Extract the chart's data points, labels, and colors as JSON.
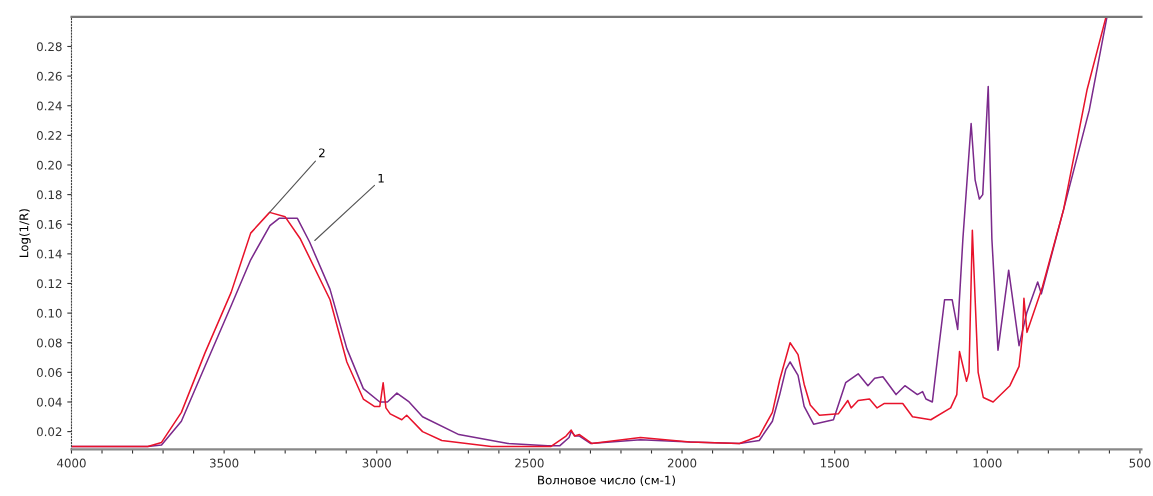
{
  "chart_data": {
    "type": "line",
    "xlabel": "Волновое число (см-1)",
    "ylabel": "Log(1/R)",
    "xlim": [
      4000,
      495
    ],
    "ylim": [
      0.008,
      0.3
    ],
    "xticks": [
      4000,
      {
        "value": 3900,
        "label": null
      },
      {
        "value": 3800,
        "label": null
      },
      {
        "value": 3700,
        "label": null
      },
      {
        "value": 3600,
        "label": null
      },
      3500,
      {
        "value": 3400,
        "label": null
      },
      {
        "value": 3300,
        "label": null
      },
      {
        "value": 3200,
        "label": null
      },
      {
        "value": 3100,
        "label": null
      },
      3000,
      {
        "value": 2900,
        "label": null
      },
      {
        "value": 2800,
        "label": null
      },
      {
        "value": 2700,
        "label": null
      },
      {
        "value": 2600,
        "label": null
      },
      2500,
      {
        "value": 2400,
        "label": null
      },
      {
        "value": 2300,
        "label": null
      },
      {
        "value": 2200,
        "label": null
      },
      {
        "value": 2100,
        "label": null
      },
      2000,
      {
        "value": 1900,
        "label": null
      },
      {
        "value": 1800,
        "label": null
      },
      {
        "value": 1700,
        "label": null
      },
      {
        "value": 1600,
        "label": null
      },
      1500,
      {
        "value": 1400,
        "label": null
      },
      {
        "value": 1300,
        "label": null
      },
      {
        "value": 1200,
        "label": null
      },
      {
        "value": 1100,
        "label": null
      },
      1000,
      {
        "value": 900,
        "label": null
      },
      {
        "value": 800,
        "label": null
      },
      {
        "value": 700,
        "label": null
      },
      {
        "value": 600,
        "label": null
      },
      500
    ],
    "yticks": [
      {
        "value": 0.02,
        "label": "0.02"
      },
      {
        "value": 0.04,
        "label": "0.04"
      },
      {
        "value": 0.06,
        "label": "0.06"
      },
      {
        "value": 0.08,
        "label": "0.08"
      },
      {
        "value": 0.1,
        "label": "0.10"
      },
      {
        "value": 0.12,
        "label": "0.12"
      },
      {
        "value": 0.14,
        "label": "0.14"
      },
      {
        "value": 0.16,
        "label": "0.16"
      },
      {
        "value": 0.18,
        "label": "0.18"
      },
      {
        "value": 0.2,
        "label": "0.20"
      },
      {
        "value": 0.22,
        "label": "0.22"
      },
      {
        "value": 0.24,
        "label": "0.24"
      },
      {
        "value": 0.26,
        "label": "0.26"
      },
      {
        "value": 0.28,
        "label": "0.28"
      }
    ],
    "grid": false,
    "marker": "none",
    "line_style": "solid",
    "series": [
      {
        "color": "#7b2a8c",
        "x": [
          4000,
          3750,
          3705,
          3640,
          3563,
          3477,
          3413,
          3350,
          3320,
          3260,
          3220,
          3153,
          3098,
          3044,
          2990,
          2965,
          2934,
          2894,
          2850,
          2731,
          2570,
          2440,
          2400,
          2370,
          2363,
          2350,
          2336,
          2300,
          2136,
          1974,
          1812,
          1747,
          1704,
          1680,
          1660,
          1646,
          1620,
          1600,
          1569,
          1504,
          1464,
          1423,
          1391,
          1369,
          1342,
          1299,
          1270,
          1229,
          1212,
          1201,
          1180,
          1160,
          1140,
          1115,
          1097,
          1080,
          1053,
          1040,
          1026,
          1015,
          997,
          985,
          965,
          930,
          896,
          871,
          835,
          823,
          750,
          666,
          608
        ],
        "values": [
          0.01,
          0.01,
          0.011,
          0.027,
          0.064,
          0.105,
          0.136,
          0.159,
          0.164,
          0.164,
          0.148,
          0.116,
          0.076,
          0.049,
          0.04,
          0.04,
          0.046,
          0.04,
          0.03,
          0.018,
          0.012,
          0.0105,
          0.0105,
          0.016,
          0.02,
          0.017,
          0.017,
          0.012,
          0.0145,
          0.013,
          0.012,
          0.014,
          0.027,
          0.045,
          0.062,
          0.067,
          0.058,
          0.037,
          0.025,
          0.028,
          0.053,
          0.059,
          0.051,
          0.056,
          0.057,
          0.045,
          0.051,
          0.045,
          0.047,
          0.042,
          0.04,
          0.075,
          0.109,
          0.109,
          0.089,
          0.15,
          0.228,
          0.19,
          0.177,
          0.18,
          0.253,
          0.15,
          0.075,
          0.129,
          0.078,
          0.1,
          0.121,
          0.113,
          0.17,
          0.237,
          0.3
        ]
      },
      {
        "color": "#e8132b",
        "x": [
          4000,
          3750,
          3705,
          3640,
          3563,
          3477,
          3413,
          3351,
          3300,
          3250,
          3153,
          3098,
          3044,
          3008,
          2990,
          2979,
          2970,
          2956,
          2918,
          2902,
          2850,
          2787,
          2625,
          2429,
          2380,
          2363,
          2352,
          2336,
          2296,
          2136,
          1974,
          1812,
          1747,
          1704,
          1680,
          1646,
          1620,
          1600,
          1580,
          1550,
          1488,
          1457,
          1446,
          1423,
          1386,
          1361,
          1337,
          1277,
          1245,
          1185,
          1120,
          1100,
          1091,
          1068,
          1060,
          1049,
          1040,
          1030,
          1013,
          981,
          926,
          896,
          885,
          880,
          870,
          819,
          750,
          673,
          611
        ],
        "values": [
          0.01,
          0.01,
          0.0127,
          0.033,
          0.073,
          0.114,
          0.154,
          0.168,
          0.165,
          0.15,
          0.109,
          0.067,
          0.042,
          0.037,
          0.037,
          0.053,
          0.036,
          0.032,
          0.028,
          0.031,
          0.02,
          0.014,
          0.01,
          0.01,
          0.017,
          0.021,
          0.017,
          0.018,
          0.012,
          0.016,
          0.013,
          0.012,
          0.017,
          0.033,
          0.055,
          0.08,
          0.072,
          0.052,
          0.038,
          0.031,
          0.032,
          0.041,
          0.036,
          0.041,
          0.042,
          0.036,
          0.039,
          0.039,
          0.03,
          0.028,
          0.036,
          0.045,
          0.074,
          0.054,
          0.06,
          0.156,
          0.11,
          0.06,
          0.043,
          0.04,
          0.051,
          0.064,
          0.085,
          0.11,
          0.087,
          0.118,
          0.17,
          0.251,
          0.3
        ]
      }
    ],
    "annotations": [
      {
        "text": "1",
        "x": 3203,
        "y": 0.149
      },
      {
        "text": "2",
        "x": 3351,
        "y": 0.168
      }
    ]
  }
}
